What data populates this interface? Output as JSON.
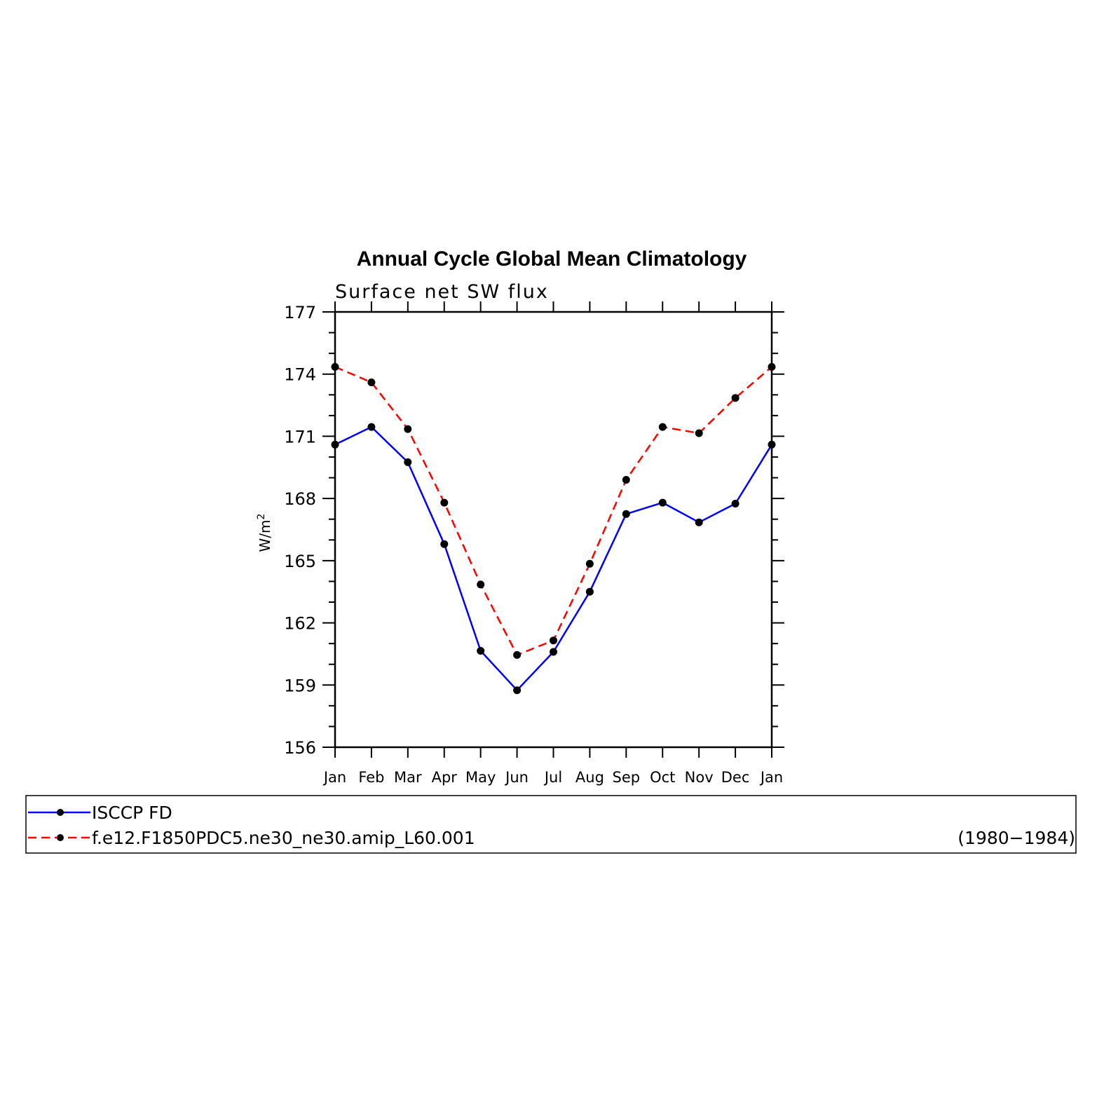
{
  "chart_data": {
    "type": "line",
    "title": "Annual Cycle Global Mean Climatology",
    "subtitle": "Surface net SW flux",
    "ylabel": "W/m",
    "ylabel_sup": "2",
    "xlabel": "",
    "categories": [
      "Jan",
      "Feb",
      "Mar",
      "Apr",
      "May",
      "Jun",
      "Jul",
      "Aug",
      "Sep",
      "Oct",
      "Nov",
      "Dec",
      "Jan"
    ],
    "ylim": [
      156,
      177
    ],
    "yticks": [
      156,
      159,
      162,
      165,
      168,
      171,
      174,
      177
    ],
    "grid": false,
    "series": [
      {
        "name": "ISCCP FD",
        "color": "#0000ff",
        "style": "solid",
        "values": [
          170.6,
          171.45,
          169.75,
          165.8,
          160.65,
          158.75,
          160.6,
          163.5,
          167.25,
          167.8,
          166.85,
          167.75,
          170.6
        ]
      },
      {
        "name": "f.e12.F1850PDC5.ne30_ne30.amip_L60.001",
        "color": "#ff0000",
        "style": "dashed",
        "values": [
          174.35,
          173.6,
          171.35,
          167.8,
          163.85,
          160.45,
          161.15,
          164.85,
          168.9,
          171.45,
          171.15,
          172.85,
          174.35
        ]
      }
    ],
    "legend": {
      "placement": "bottom",
      "note": "(1980−1984)"
    }
  }
}
